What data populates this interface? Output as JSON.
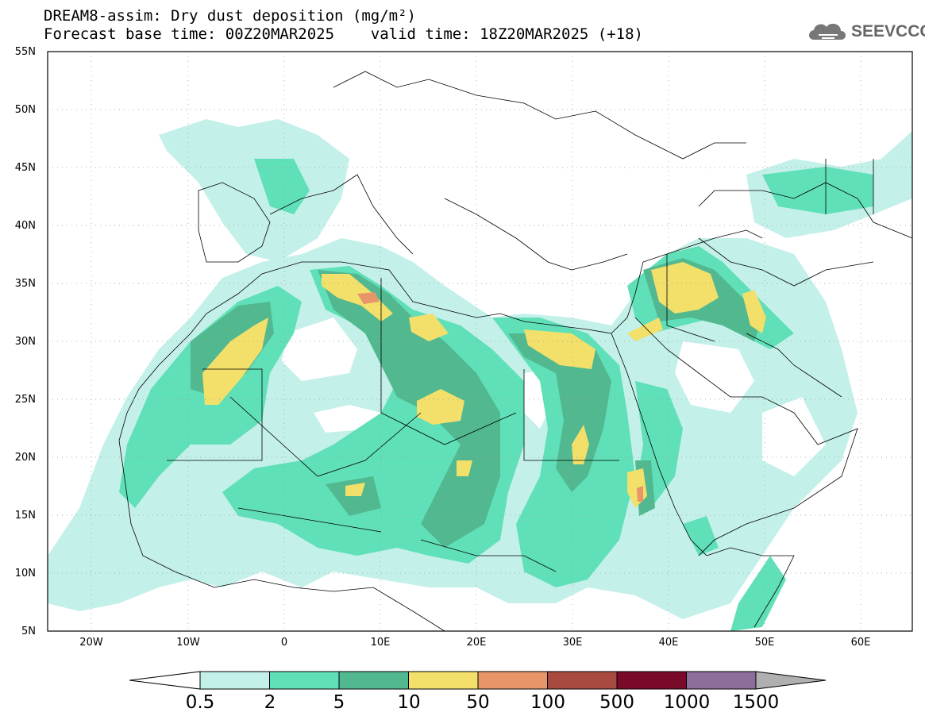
{
  "header": {
    "title_line1": "DREAM8-assim: Dry dust deposition (mg/m²)",
    "title_line2": "Forecast base time: 00Z20MAR2025    valid time: 18Z20MAR2025 (+18)"
  },
  "logo": {
    "text": "SEEVCCC",
    "icon": "cloud-icon"
  },
  "map": {
    "lon_range": [
      -25,
      65
    ],
    "lat_range": [
      5,
      55
    ],
    "lat_labels": [
      "55N",
      "50N",
      "45N",
      "40N",
      "35N",
      "30N",
      "25N",
      "20N",
      "15N",
      "10N",
      "5N"
    ],
    "lon_labels": [
      "20W",
      "10W",
      "0",
      "10E",
      "20E",
      "30E",
      "40E",
      "50E",
      "60E"
    ]
  },
  "colorbar": {
    "labels": [
      "0.5",
      "2",
      "5",
      "10",
      "50",
      "100",
      "500",
      "1000",
      "1500"
    ],
    "colors": [
      "#c4f0ea",
      "#60e0b8",
      "#52b890",
      "#f2e06a",
      "#e8956a",
      "#a84a40",
      "#7a0a2a",
      "#8e6d9a",
      "#b0b0b0"
    ]
  }
}
